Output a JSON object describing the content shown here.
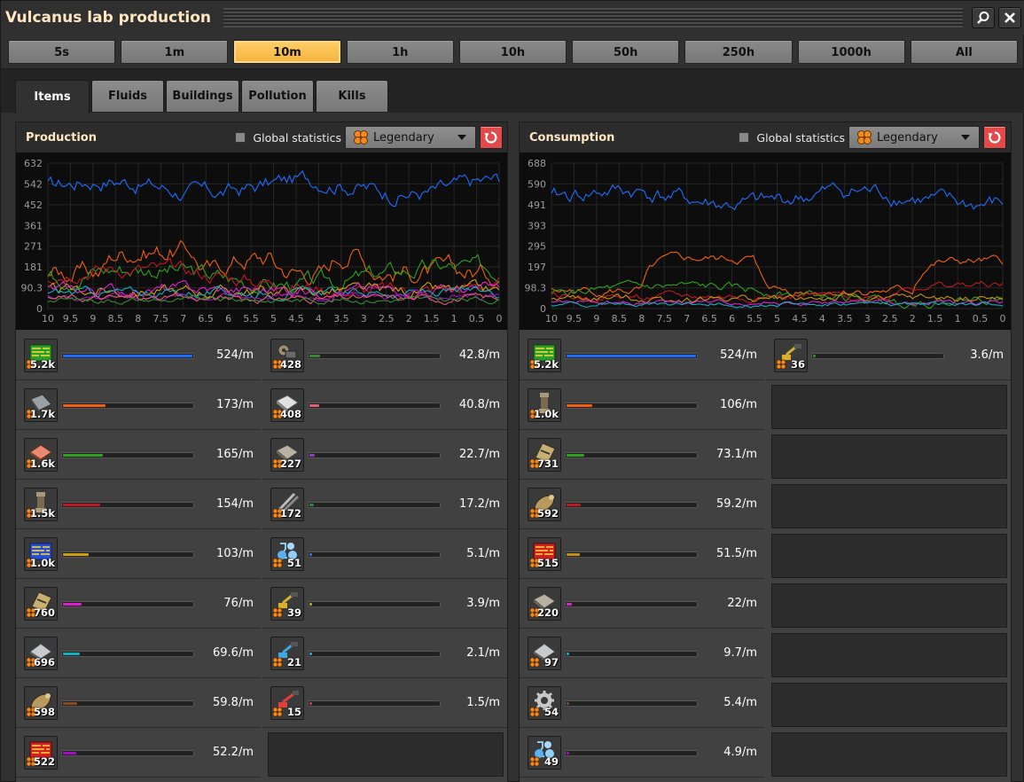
{
  "window": {
    "title": "Vulcanus lab production"
  },
  "time_buttons": [
    "5s",
    "1m",
    "10m",
    "1h",
    "10h",
    "50h",
    "250h",
    "1000h",
    "All"
  ],
  "active_time": "10m",
  "tabs": [
    "Items",
    "Fluids",
    "Buildings",
    "Pollution",
    "Kills"
  ],
  "active_tab": "Items",
  "colors": {
    "accent": "#f5b23c",
    "title": "#ffe6c0",
    "reset": "#e24a4a",
    "quality": "#f08a1f"
  },
  "production": {
    "title": "Production",
    "global_statistics_label": "Global statistics",
    "quality_filter": "Legendary",
    "graph": {
      "y_ticks": [
        "632",
        "542",
        "452",
        "361",
        "271",
        "181",
        "90.3",
        "0"
      ],
      "x_ticks": [
        "10",
        "9.5",
        "9",
        "8.5",
        "8",
        "7.5",
        "7",
        "6.5",
        "6",
        "5.5",
        "5",
        "4.5",
        "4",
        "3.5",
        "3",
        "2.5",
        "2",
        "1.5",
        "1",
        "0.5",
        "0"
      ]
    },
    "rows": [
      {
        "icon": "processing-unit-icon",
        "count": "5.2k",
        "rate": "524/m",
        "fraction": 1.0,
        "color": "#1f6dff"
      },
      {
        "icon": "tungsten-plate-icon",
        "count": "1.7k",
        "rate": "173/m",
        "fraction": 0.33,
        "color": "#f06010"
      },
      {
        "icon": "copper-plate-icon",
        "count": "1.6k",
        "rate": "165/m",
        "fraction": 0.31,
        "color": "#2fa020"
      },
      {
        "icon": "pipe-icon",
        "count": "1.5k",
        "rate": "154/m",
        "fraction": 0.29,
        "color": "#c01820"
      },
      {
        "icon": "advanced-circuit-icon",
        "count": "1.0k",
        "rate": "103/m",
        "fraction": 0.2,
        "color": "#d0a010"
      },
      {
        "icon": "tungsten-carbide-icon",
        "count": "760",
        "rate": "76/m",
        "fraction": 0.145,
        "color": "#e020d0"
      },
      {
        "icon": "iron-plate-icon",
        "count": "696",
        "rate": "69.6/m",
        "fraction": 0.13,
        "color": "#10b0c0"
      },
      {
        "icon": "cannon-shell-icon",
        "count": "598",
        "rate": "59.8/m",
        "fraction": 0.11,
        "color": "#8a4a20"
      },
      {
        "icon": "electronic-circuit-red-icon",
        "count": "522",
        "rate": "52.2/m",
        "fraction": 0.1,
        "color": "#a010c0"
      },
      {
        "icon": "engine-unit-icon",
        "count": "428",
        "rate": "42.8/m",
        "fraction": 0.08,
        "color": "#3a8a30"
      },
      {
        "icon": "steel-plate-icon",
        "count": "408",
        "rate": "40.8/m",
        "fraction": 0.078,
        "color": "#e06070"
      },
      {
        "icon": "stone-brick-icon",
        "count": "227",
        "rate": "22.7/m",
        "fraction": 0.043,
        "color": "#8a40c0"
      },
      {
        "icon": "iron-stick-icon",
        "count": "172",
        "rate": "17.2/m",
        "fraction": 0.033,
        "color": "#2a8a30"
      },
      {
        "icon": "science-pack-icon",
        "count": "51",
        "rate": "5.1/m",
        "fraction": 0.01,
        "color": "#3a70d0"
      },
      {
        "icon": "inserter-icon",
        "count": "39",
        "rate": "3.9/m",
        "fraction": 0.007,
        "color": "#c0a020"
      },
      {
        "icon": "fast-inserter-icon",
        "count": "21",
        "rate": "2.1/m",
        "fraction": 0.004,
        "color": "#40a0d0"
      },
      {
        "icon": "long-inserter-icon",
        "count": "15",
        "rate": "1.5/m",
        "fraction": 0.003,
        "color": "#c04040"
      }
    ]
  },
  "consumption": {
    "title": "Consumption",
    "global_statistics_label": "Global statistics",
    "quality_filter": "Legendary",
    "graph": {
      "y_ticks": [
        "688",
        "590",
        "491",
        "393",
        "295",
        "197",
        "98.3",
        "0"
      ],
      "x_ticks": [
        "10",
        "9.5",
        "9",
        "8.5",
        "8",
        "7.5",
        "7",
        "6.5",
        "6",
        "5.5",
        "5",
        "4.5",
        "4",
        "3.5",
        "3",
        "2.5",
        "2",
        "1.5",
        "1",
        "0.5",
        "0"
      ]
    },
    "rows": [
      {
        "icon": "processing-unit-icon",
        "count": "5.2k",
        "rate": "524/m",
        "fraction": 1.0,
        "color": "#1f6dff"
      },
      {
        "icon": "pipe-icon",
        "count": "1.0k",
        "rate": "106/m",
        "fraction": 0.2,
        "color": "#f06010"
      },
      {
        "icon": "tungsten-carbide-icon",
        "count": "731",
        "rate": "73.1/m",
        "fraction": 0.14,
        "color": "#2fa020"
      },
      {
        "icon": "cannon-shell-icon",
        "count": "592",
        "rate": "59.2/m",
        "fraction": 0.11,
        "color": "#c01820"
      },
      {
        "icon": "electronic-circuit-red-icon",
        "count": "515",
        "rate": "51.5/m",
        "fraction": 0.1,
        "color": "#c09010"
      },
      {
        "icon": "stone-brick-icon",
        "count": "220",
        "rate": "22/m",
        "fraction": 0.04,
        "color": "#e020d0"
      },
      {
        "icon": "iron-plate-icon",
        "count": "97",
        "rate": "9.7/m",
        "fraction": 0.018,
        "color": "#10b0c0"
      },
      {
        "icon": "gear-icon",
        "count": "54",
        "rate": "5.4/m",
        "fraction": 0.01,
        "color": "#8a4a20"
      },
      {
        "icon": "science-pack-icon",
        "count": "49",
        "rate": "4.9/m",
        "fraction": 0.009,
        "color": "#a010c0"
      },
      {
        "icon": "inserter-icon",
        "count": "36",
        "rate": "3.6/m",
        "fraction": 0.007,
        "color": "#3a8a30"
      }
    ]
  }
}
